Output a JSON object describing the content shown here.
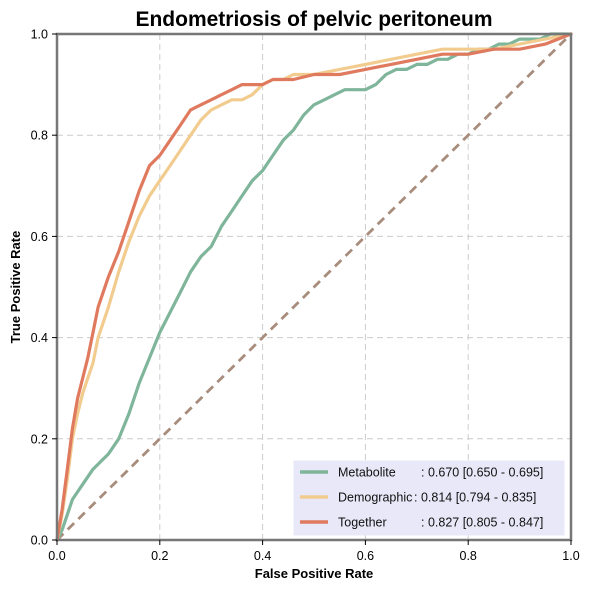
{
  "chart_data": {
    "type": "line",
    "title": "Endometriosis of pelvic peritoneum",
    "xlabel": "False Positive Rate",
    "ylabel": "True Positive Rate",
    "xlim": [
      0,
      1
    ],
    "ylim": [
      0,
      1
    ],
    "xticks": [
      "0.0",
      "0.2",
      "0.4",
      "0.6",
      "0.8",
      "1.0"
    ],
    "yticks": [
      "0.0",
      "0.2",
      "0.4",
      "0.6",
      "0.8",
      "1.0"
    ],
    "grid": true,
    "legend_position": "bottom-right",
    "reference_line": {
      "x": [
        0,
        1
      ],
      "y": [
        0,
        1
      ],
      "color": "#a88c7c",
      "style": "dashed"
    },
    "series": [
      {
        "name": "Metabolite",
        "auc_label": ": 0.670 [0.650 - 0.695]",
        "color": "#7fb59a",
        "x": [
          0,
          0.01,
          0.02,
          0.03,
          0.05,
          0.07,
          0.09,
          0.1,
          0.12,
          0.14,
          0.16,
          0.18,
          0.2,
          0.22,
          0.24,
          0.26,
          0.28,
          0.3,
          0.32,
          0.34,
          0.36,
          0.38,
          0.4,
          0.42,
          0.44,
          0.46,
          0.48,
          0.5,
          0.52,
          0.54,
          0.56,
          0.58,
          0.6,
          0.62,
          0.64,
          0.66,
          0.68,
          0.7,
          0.72,
          0.74,
          0.76,
          0.78,
          0.8,
          0.82,
          0.84,
          0.86,
          0.88,
          0.9,
          0.92,
          0.94,
          0.96,
          0.98,
          1
        ],
        "y": [
          0,
          0.02,
          0.05,
          0.08,
          0.11,
          0.14,
          0.16,
          0.17,
          0.2,
          0.25,
          0.31,
          0.36,
          0.41,
          0.45,
          0.49,
          0.53,
          0.56,
          0.58,
          0.62,
          0.65,
          0.68,
          0.71,
          0.73,
          0.76,
          0.79,
          0.81,
          0.84,
          0.86,
          0.87,
          0.88,
          0.89,
          0.89,
          0.89,
          0.9,
          0.92,
          0.93,
          0.93,
          0.94,
          0.94,
          0.95,
          0.95,
          0.96,
          0.96,
          0.97,
          0.97,
          0.98,
          0.98,
          0.99,
          0.99,
          0.99,
          1,
          1,
          1
        ]
      },
      {
        "name": "Demographic",
        "auc_label": ": 0.814 [0.794 - 0.835]",
        "color": "#f2cc8f",
        "x": [
          0,
          0.01,
          0.02,
          0.03,
          0.04,
          0.05,
          0.06,
          0.07,
          0.08,
          0.1,
          0.12,
          0.14,
          0.16,
          0.18,
          0.2,
          0.22,
          0.24,
          0.26,
          0.28,
          0.3,
          0.32,
          0.34,
          0.36,
          0.38,
          0.4,
          0.42,
          0.44,
          0.46,
          0.5,
          0.55,
          0.6,
          0.65,
          0.7,
          0.75,
          0.8,
          0.85,
          0.9,
          0.95,
          1
        ],
        "y": [
          0,
          0.05,
          0.12,
          0.2,
          0.25,
          0.29,
          0.32,
          0.35,
          0.4,
          0.46,
          0.53,
          0.59,
          0.64,
          0.68,
          0.71,
          0.74,
          0.77,
          0.8,
          0.83,
          0.85,
          0.86,
          0.87,
          0.87,
          0.88,
          0.9,
          0.91,
          0.91,
          0.92,
          0.92,
          0.93,
          0.94,
          0.95,
          0.96,
          0.97,
          0.97,
          0.97,
          0.98,
          0.99,
          1
        ]
      },
      {
        "name": "Together",
        "auc_label": ": 0.827 [0.805 - 0.847]",
        "color": "#e07a5f",
        "x": [
          0,
          0.01,
          0.02,
          0.03,
          0.04,
          0.05,
          0.06,
          0.07,
          0.08,
          0.1,
          0.12,
          0.14,
          0.16,
          0.18,
          0.2,
          0.22,
          0.24,
          0.26,
          0.28,
          0.3,
          0.32,
          0.34,
          0.36,
          0.38,
          0.4,
          0.42,
          0.44,
          0.46,
          0.5,
          0.55,
          0.6,
          0.65,
          0.7,
          0.75,
          0.8,
          0.85,
          0.9,
          0.95,
          1
        ],
        "y": [
          0,
          0.06,
          0.14,
          0.22,
          0.28,
          0.32,
          0.36,
          0.41,
          0.46,
          0.52,
          0.57,
          0.63,
          0.69,
          0.74,
          0.76,
          0.79,
          0.82,
          0.85,
          0.86,
          0.87,
          0.88,
          0.89,
          0.9,
          0.9,
          0.9,
          0.91,
          0.91,
          0.91,
          0.92,
          0.92,
          0.93,
          0.94,
          0.95,
          0.96,
          0.96,
          0.97,
          0.97,
          0.98,
          1
        ]
      }
    ]
  }
}
